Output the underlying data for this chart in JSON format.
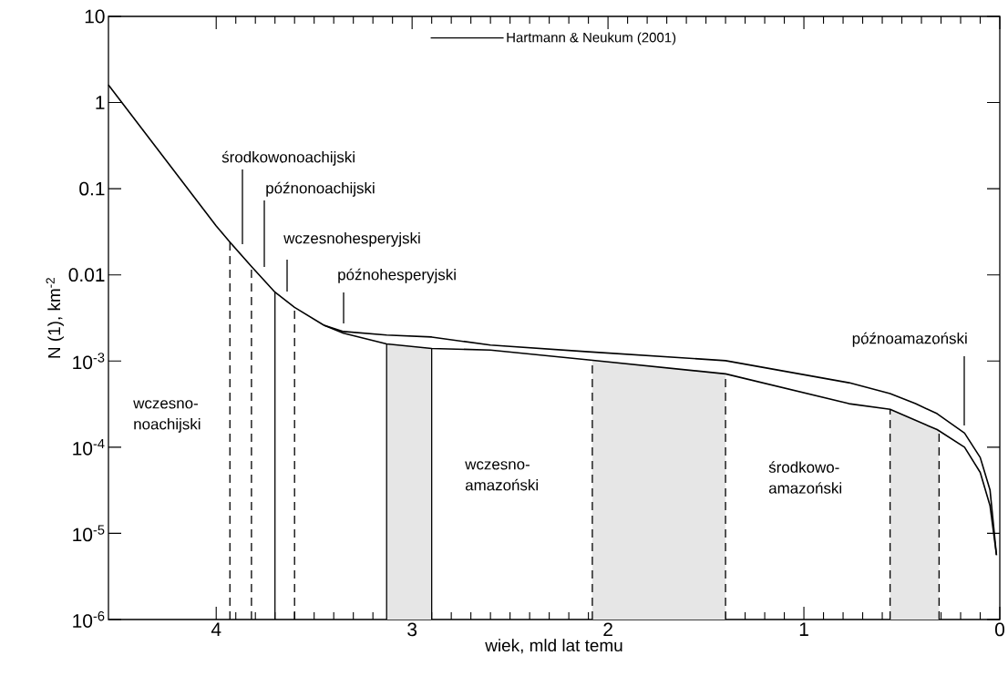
{
  "chart_data": {
    "type": "line",
    "xlabel": "wiek, mld lat temu",
    "ylabel": "N (1), km$^{-2}$",
    "xlim": [
      4.55,
      0
    ],
    "xticks": [
      4,
      3,
      2,
      1,
      0
    ],
    "ylim": [
      1e-06,
      10
    ],
    "log": "y",
    "yticks": [
      {
        "value": 1e-06,
        "label": "10$^{-6}$"
      },
      {
        "value": 1e-05,
        "label": "10$^{-5}$"
      },
      {
        "value": 0.0001,
        "label": "10$^{-4}$"
      },
      {
        "value": 0.001,
        "label": "10$^{-3}$"
      },
      0.01,
      0.1,
      1,
      10
    ],
    "grid": false,
    "legend": "top",
    "marker": "none",
    "line_style": "solid",
    "series": [
      {
        "name": "Hartmann & Neukum (2001)",
        "color": "#000000",
        "x": [
          4.55,
          4.0,
          3.93,
          3.82,
          3.7,
          3.6,
          3.45,
          3.35,
          3.13,
          2.9,
          2.6,
          2.1,
          1.4,
          0.77,
          0.56,
          0.43,
          0.32,
          0.18,
          0.1,
          0.05,
          0.017
        ],
        "values": [
          1.6,
          0.037,
          0.024,
          0.0125,
          0.0063,
          0.0042,
          0.0026,
          0.0022,
          0.002,
          0.0019,
          0.00153,
          0.00128,
          0.00101,
          0.00056,
          0.00042,
          0.00032,
          0.000245,
          0.000146,
          7.6e-05,
          3.2e-05,
          5.6e-06
        ]
      },
      {
        "color": "#000000",
        "x": [
          3.45,
          3.35,
          3.13,
          2.9,
          2.6,
          2.1,
          1.4,
          0.77,
          0.56,
          0.32,
          0.18,
          0.1,
          0.05,
          0.017
        ],
        "values": [
          0.0026,
          0.0021,
          0.00158,
          0.0014,
          0.00134,
          0.00103,
          0.00071,
          0.00032,
          0.000275,
          0.00016,
          0.0001,
          5.1e-05,
          2.1e-05,
          5.6e-06
        ]
      }
    ],
    "ref_lines": [
      {
        "axis": "x",
        "value": 3.93,
        "line_style": "dashed"
      },
      {
        "axis": "x",
        "value": 3.82,
        "line_style": "dashed"
      },
      {
        "axis": "x",
        "value": 3.7,
        "line_style": "solid"
      },
      {
        "axis": "x",
        "value": 3.6,
        "line_style": "dashed"
      },
      {
        "axis": "x",
        "value": 3.13,
        "line_style": "solid"
      },
      {
        "axis": "x",
        "value": 2.9,
        "line_style": "solid"
      },
      {
        "axis": "x",
        "value": 2.08,
        "line_style": "dashed"
      },
      {
        "axis": "x",
        "value": 1.4,
        "line_style": "dashed"
      },
      {
        "axis": "x",
        "value": 0.56,
        "line_style": "dashed"
      },
      {
        "axis": "x",
        "value": 0.31,
        "line_style": "dashed"
      }
    ],
    "bands": [
      {
        "axis": "x",
        "from": 3.13,
        "to": 2.9,
        "color": "#e6e6e6"
      },
      {
        "axis": "x",
        "from": 2.08,
        "to": 1.4,
        "color": "#e6e6e6"
      },
      {
        "axis": "x",
        "from": 0.56,
        "to": 0.31,
        "color": "#e6e6e6"
      }
    ],
    "annotations": [
      "środkowonoachijski",
      "późnonoachijski",
      "wczesnohesperyjski",
      "późnohesperyjski",
      "późnoamazoński",
      "wczesno-noachijski",
      "wczesno-amazoński",
      "środkowo-amazoński"
    ]
  }
}
